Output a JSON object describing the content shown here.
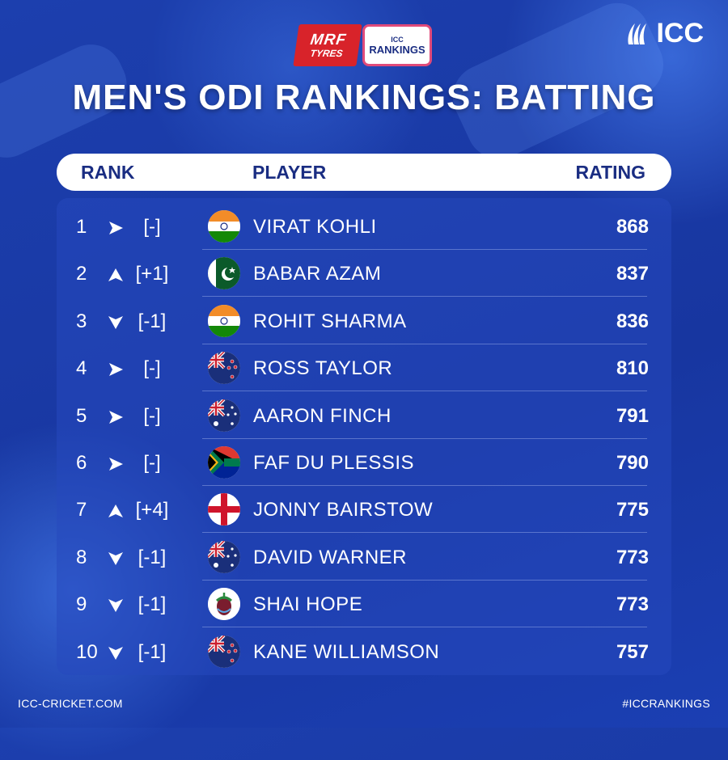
{
  "sponsor": {
    "mrf_line1": "MRF",
    "mrf_line2": "TYRES",
    "badge_small": "ICC",
    "badge_big": "RANKINGS"
  },
  "brand": {
    "logo_text": "ICC",
    "logo_icon": "icc-logo-icon"
  },
  "title": "MEN'S ODI RANKINGS: BATTING",
  "table": {
    "headers": {
      "rank": "RANK",
      "player": "PLAYER",
      "rating": "RATING"
    },
    "rows": [
      {
        "rank": "1",
        "trend": "same",
        "change": "[-]",
        "country": "india",
        "player": "VIRAT KOHLI",
        "rating": "868"
      },
      {
        "rank": "2",
        "trend": "up",
        "change": "[+1]",
        "country": "pakistan",
        "player": "BABAR AZAM",
        "rating": "837"
      },
      {
        "rank": "3",
        "trend": "down",
        "change": "[-1]",
        "country": "india",
        "player": "ROHIT SHARMA",
        "rating": "836"
      },
      {
        "rank": "4",
        "trend": "same",
        "change": "[-]",
        "country": "new-zealand",
        "player": "ROSS TAYLOR",
        "rating": "810"
      },
      {
        "rank": "5",
        "trend": "same",
        "change": "[-]",
        "country": "australia",
        "player": "AARON FINCH",
        "rating": "791"
      },
      {
        "rank": "6",
        "trend": "same",
        "change": "[-]",
        "country": "south-africa",
        "player": "FAF DU PLESSIS",
        "rating": "790"
      },
      {
        "rank": "7",
        "trend": "up",
        "change": "[+4]",
        "country": "england",
        "player": "JONNY BAIRSTOW",
        "rating": "775"
      },
      {
        "rank": "8",
        "trend": "down",
        "change": "[-1]",
        "country": "australia",
        "player": "DAVID WARNER",
        "rating": "773"
      },
      {
        "rank": "9",
        "trend": "down",
        "change": "[-1]",
        "country": "west-indies",
        "player": "SHAI HOPE",
        "rating": "773"
      },
      {
        "rank": "10",
        "trend": "down",
        "change": "[-1]",
        "country": "new-zealand",
        "player": "KANE WILLIAMSON",
        "rating": "757"
      }
    ]
  },
  "footer": {
    "left": "ICC-CRICKET.COM",
    "right": "#ICCRANKINGS"
  },
  "colors": {
    "navy": "#1a2d82",
    "accent_red": "#d8232a",
    "bg_blue": "#1a3aa6"
  }
}
